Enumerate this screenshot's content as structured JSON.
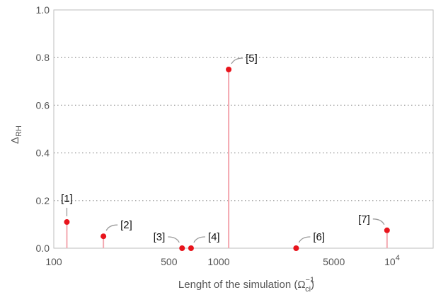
{
  "chart_data": {
    "type": "scatter",
    "title": "",
    "xlabel": "Lenght of the simulation (Ω",
    "xlabel_sub": "ci",
    "xlabel_sup": "−1",
    "xlabel_close": ")",
    "ylabel": "Δ",
    "ylabel_sub": "RH",
    "x_scale": "log",
    "xlim": [
      100,
      20000
    ],
    "ylim": [
      0,
      1.0
    ],
    "x_ticks": [
      {
        "value": 100,
        "label": "100"
      },
      {
        "value": 500,
        "label": "500"
      },
      {
        "value": 1000,
        "label": "1000"
      },
      {
        "value": 5000,
        "label": "5000"
      }
    ],
    "x_tick_power": {
      "value": 10000,
      "base": "10",
      "exponent": "4"
    },
    "y_ticks": [
      {
        "value": 0.0,
        "label": "0.0"
      },
      {
        "value": 0.2,
        "label": "0.2"
      },
      {
        "value": 0.4,
        "label": "0.4"
      },
      {
        "value": 0.6,
        "label": "0.6"
      },
      {
        "value": 0.8,
        "label": "0.8"
      },
      {
        "value": 1.0,
        "label": "1.0"
      }
    ],
    "grid": "horizontal dotted",
    "points": [
      {
        "label": "[1]",
        "x": 120,
        "y": 0.11,
        "label_pos": "above"
      },
      {
        "label": "[2]",
        "x": 200,
        "y": 0.05,
        "label_pos": "upper-right"
      },
      {
        "label": "[3]",
        "x": 600,
        "y": 0.0,
        "label_pos": "upper-left"
      },
      {
        "label": "[4]",
        "x": 680,
        "y": 0.0,
        "label_pos": "upper-right"
      },
      {
        "label": "[5]",
        "x": 1150,
        "y": 0.75,
        "label_pos": "upper-right"
      },
      {
        "label": "[6]",
        "x": 2950,
        "y": 0.0,
        "label_pos": "upper-right"
      },
      {
        "label": "[7]",
        "x": 10500,
        "y": 0.075,
        "label_pos": "upper-left"
      }
    ],
    "colors": {
      "point": "#e8141c",
      "stem": "#f3a8b0",
      "grid": "#9a9a9a",
      "frame": "#bdbdbd"
    }
  }
}
